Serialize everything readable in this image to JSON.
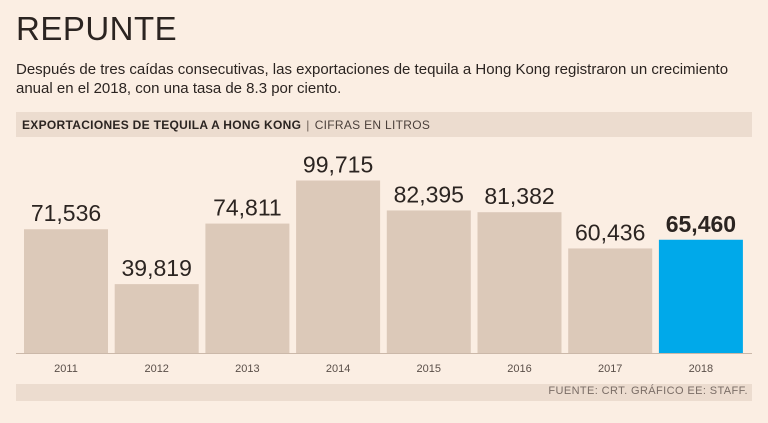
{
  "header": {
    "title": "REPUNTE",
    "subtitle": "Después de tres caídas consecutivas, las exportaciones de tequila a Hong Kong registraron un crecimiento anual en el 2018, con una tasa de 8.3 por ciento."
  },
  "band": {
    "heading": "EXPORTACIONES DE TEQUILA A HONG KONG",
    "separator": "|",
    "units": "CIFRAS EN LITROS"
  },
  "footer": {
    "source": "FUENTE: CRT. GRÁFICO EE: STAFF."
  },
  "colors": {
    "bar": "#dcc9b9",
    "highlight": "#00a9ea",
    "background": "#fbeee3"
  },
  "chart_data": {
    "type": "bar",
    "title": "EXPORTACIONES DE TEQUILA A HONG KONG",
    "ylabel": "CIFRAS EN LITROS",
    "xlabel": "",
    "categories": [
      "2011",
      "2012",
      "2013",
      "2014",
      "2015",
      "2016",
      "2017",
      "2018"
    ],
    "values": [
      71536,
      39819,
      74811,
      99715,
      82395,
      81382,
      60436,
      65460
    ],
    "value_labels": [
      "71,536",
      "39,819",
      "74,811",
      "99,715",
      "82,395",
      "81,382",
      "60,436",
      "65,460"
    ],
    "highlight_index": 7,
    "ylim": [
      0,
      100000
    ],
    "grid": false,
    "legend": "none"
  }
}
